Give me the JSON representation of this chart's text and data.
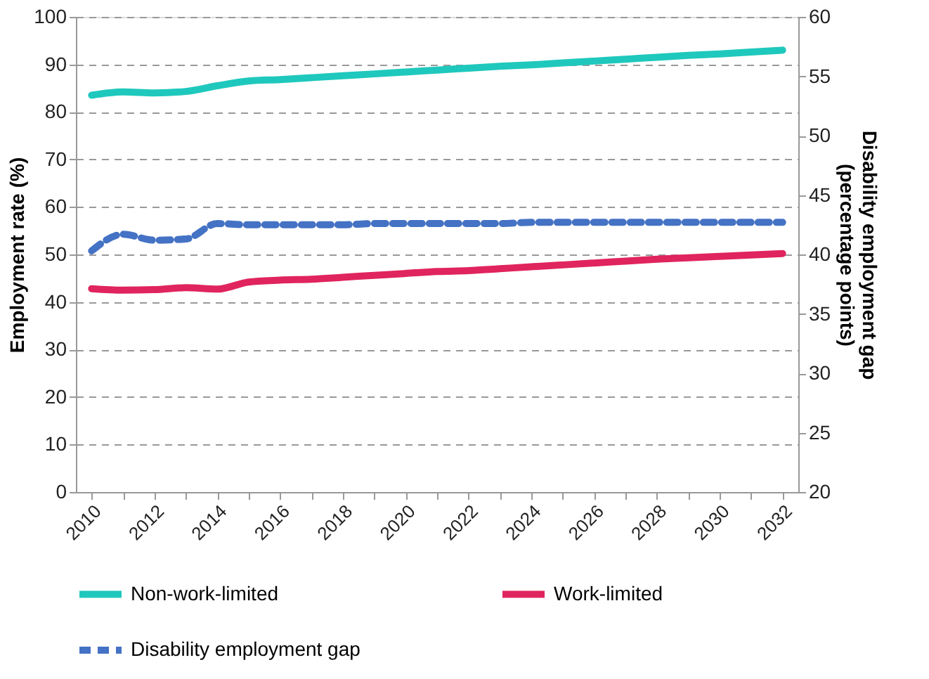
{
  "chart_data": {
    "type": "line",
    "ylabel": "Employment rate (%)",
    "y2label": "Disability employment gap\n(percentage points)",
    "categories": [
      "2010",
      null,
      "2012",
      null,
      "2014",
      null,
      "2016",
      null,
      "2018",
      null,
      "2020",
      null,
      "2022",
      null,
      "2024",
      null,
      "2026",
      null,
      "2028",
      null,
      "2030",
      null,
      "2032"
    ],
    "series": [
      {
        "name": "Non-work-limited",
        "color": "#1fc8bd",
        "line_style": "solid",
        "values": [
          83.5,
          84.2,
          84.0,
          84.3,
          85.5,
          86.5,
          86.8,
          87.2,
          87.6,
          88.0,
          88.4,
          88.8,
          89.2,
          89.6,
          89.9,
          90.3,
          90.7,
          91.1,
          91.5,
          91.9,
          92.2,
          92.6,
          93.0
        ]
      },
      {
        "name": "Work-limited",
        "color": "#e0245e",
        "line_style": "solid",
        "values": [
          42.8,
          42.5,
          42.6,
          43.0,
          42.7,
          44.2,
          44.6,
          44.8,
          45.2,
          45.6,
          46.0,
          46.4,
          46.6,
          47.0,
          47.4,
          47.8,
          48.2,
          48.6,
          49.0,
          49.3,
          49.6,
          49.9,
          50.2
        ]
      },
      {
        "name": "Disability employment gap",
        "color": "#4472c4",
        "line_style": "dashed",
        "axis": "y2",
        "values": [
          40.3,
          41.7,
          41.2,
          41.3,
          42.6,
          42.5,
          42.5,
          42.5,
          42.5,
          42.6,
          42.6,
          42.6,
          42.6,
          42.6,
          42.7,
          42.7,
          42.7,
          42.7,
          42.7,
          42.7,
          42.7,
          42.7,
          42.7
        ]
      }
    ],
    "ylim": [
      0,
      100
    ],
    "yticks": [
      0,
      10,
      20,
      30,
      40,
      50,
      60,
      70,
      80,
      90,
      100
    ],
    "y2lim": [
      20,
      60
    ],
    "y2ticks": [
      20,
      25,
      30,
      35,
      40,
      45,
      50,
      55,
      60
    ],
    "grid": "y",
    "legend": "bottom"
  }
}
